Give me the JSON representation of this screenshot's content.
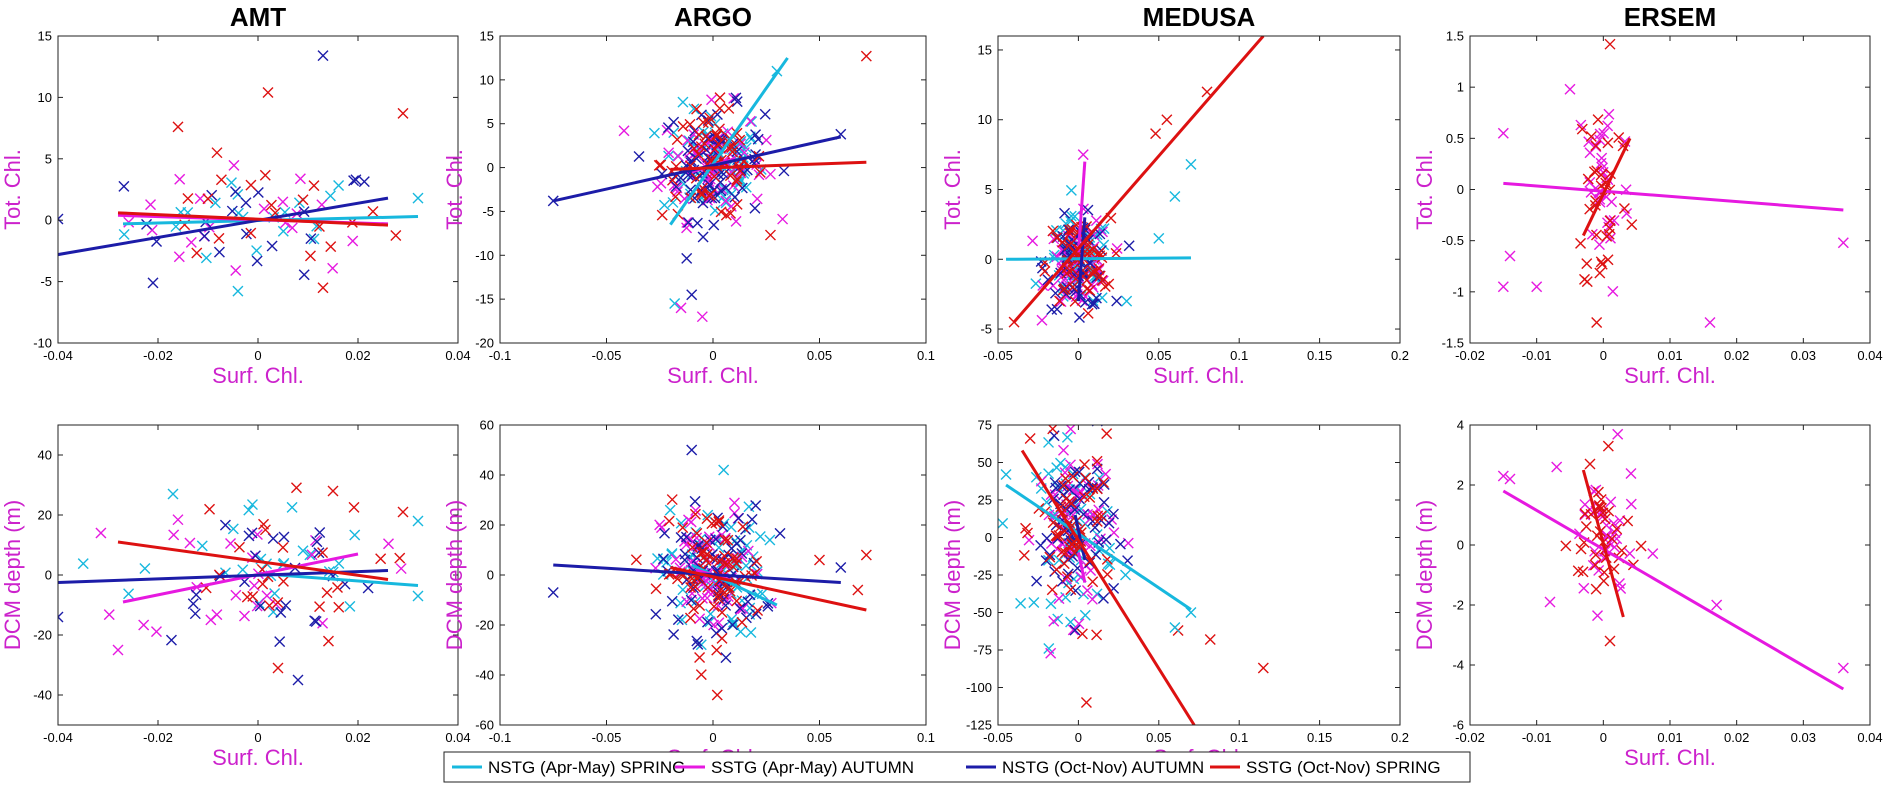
{
  "colors": {
    "NSTG_spring": "#17b8de",
    "SSTG_autumn": "#e619e0",
    "NSTG_autumn": "#1c1ca8",
    "SSTG_spring": "#dd1111",
    "axis_label": "#cc22cc"
  },
  "legend": [
    {
      "label": "NSTG (Apr-May) SPRING",
      "color": "#17b8de"
    },
    {
      "label": "SSTG (Apr-May) AUTUMN",
      "color": "#e619e0"
    },
    {
      "label": "NSTG (Oct-Nov) AUTUMN",
      "color": "#1c1ca8"
    },
    {
      "label": "SSTG (Oct-Nov) SPRING",
      "color": "#dd1111"
    }
  ],
  "chart_data": [
    {
      "type": "scatter",
      "title": "AMT",
      "xlabel": "Surf. Chl.",
      "ylabel": "Tot. Chl.",
      "xlim": [
        -0.04,
        0.04
      ],
      "ylim": [
        -10,
        15
      ],
      "xticks": [
        -0.04,
        -0.02,
        0,
        0.02,
        0.04
      ],
      "xticklabels": [
        "-0.04",
        "-0.02",
        "0",
        "0.02",
        "0.04"
      ],
      "yticks": [
        -10,
        -5,
        0,
        5,
        10,
        15
      ],
      "yticklabels": [
        "-10",
        "-5",
        "0",
        "5",
        "10",
        "15"
      ],
      "cloud": {
        "xc": 0.0,
        "xs": 0.013,
        "yc": 0.0,
        "ys": 2.2,
        "n": 20
      },
      "outliers": [
        [
          -0.04,
          0.1,
          "NSTG_autumn"
        ],
        [
          -0.021,
          -5.1,
          "NSTG_autumn"
        ],
        [
          0.013,
          13.4,
          "NSTG_autumn"
        ],
        [
          0.002,
          10.4,
          "SSTG_spring"
        ],
        [
          0.029,
          8.7,
          "SSTG_spring"
        ],
        [
          -0.016,
          7.6,
          "SSTG_spring"
        ],
        [
          0.013,
          -5.5,
          "SSTG_spring"
        ],
        [
          0.032,
          1.8,
          "NSTG_spring"
        ]
      ],
      "lines": [
        {
          "series": "NSTG_spring",
          "x": [
            -0.027,
            0.032
          ],
          "y": [
            -0.3,
            0.3
          ]
        },
        {
          "series": "SSTG_autumn",
          "x": [
            -0.028,
            0.026
          ],
          "y": [
            0.4,
            -0.3
          ]
        },
        {
          "series": "NSTG_autumn",
          "x": [
            -0.04,
            0.026
          ],
          "y": [
            -2.8,
            1.8
          ]
        },
        {
          "series": "SSTG_spring",
          "x": [
            -0.028,
            0.026
          ],
          "y": [
            0.6,
            -0.4
          ]
        }
      ]
    },
    {
      "type": "scatter",
      "title": "ARGO",
      "xlabel": "Surf. Chl.",
      "ylabel": "Tot. Chl.",
      "xlim": [
        -0.1,
        0.1
      ],
      "ylim": [
        -20,
        15
      ],
      "xticks": [
        -0.1,
        -0.05,
        0,
        0.05,
        0.1
      ],
      "xticklabels": [
        "-0.1",
        "-0.05",
        "0",
        "0.05",
        "0.1"
      ],
      "yticks": [
        -20,
        -15,
        -10,
        -5,
        0,
        5,
        10,
        15
      ],
      "yticklabels": [
        "-20",
        "-15",
        "-10",
        "-5",
        "0",
        "5",
        "10",
        "15"
      ],
      "cloud": {
        "xc": 0.0,
        "xs": 0.012,
        "yc": 0.5,
        "ys": 3.2,
        "n": 70
      },
      "outliers": [
        [
          0.072,
          12.7,
          "SSTG_spring"
        ],
        [
          -0.075,
          -3.8,
          "NSTG_autumn"
        ],
        [
          -0.018,
          -15.5,
          "NSTG_spring"
        ],
        [
          -0.015,
          -16,
          "SSTG_autumn"
        ],
        [
          -0.01,
          -14.5,
          "NSTG_autumn"
        ],
        [
          -0.005,
          -17,
          "SSTG_autumn"
        ],
        [
          0.06,
          3.8,
          "NSTG_autumn"
        ],
        [
          0.03,
          11,
          "NSTG_spring"
        ]
      ],
      "lines": [
        {
          "series": "NSTG_spring",
          "x": [
            -0.02,
            0.035
          ],
          "y": [
            -6.5,
            12.5
          ]
        },
        {
          "series": "SSTG_autumn",
          "x": [
            -0.01,
            0.01
          ],
          "y": [
            -0.5,
            1.0
          ]
        },
        {
          "series": "NSTG_autumn",
          "x": [
            -0.075,
            0.06
          ],
          "y": [
            -3.8,
            3.5
          ]
        },
        {
          "series": "SSTG_spring",
          "x": [
            -0.02,
            0.072
          ],
          "y": [
            -0.2,
            0.6
          ]
        }
      ]
    },
    {
      "type": "scatter",
      "title": "MEDUSA",
      "xlabel": "Surf. Chl.",
      "ylabel": "Tot. Chl.",
      "xlim": [
        -0.05,
        0.2
      ],
      "ylim": [
        -6,
        16
      ],
      "xticks": [
        -0.05,
        0,
        0.05,
        0.1,
        0.15,
        0.2
      ],
      "xticklabels": [
        "-0.05",
        "0",
        "0.05",
        "0.1",
        "0.15",
        "0.2"
      ],
      "yticks": [
        -5,
        0,
        5,
        10,
        15
      ],
      "yticklabels": [
        "-5",
        "0",
        "5",
        "10",
        "15"
      ],
      "cloud": {
        "xc": 0.0,
        "xs": 0.01,
        "yc": -0.3,
        "ys": 1.6,
        "n": 60
      },
      "outliers": [
        [
          0.08,
          12,
          "SSTG_spring"
        ],
        [
          0.055,
          10,
          "SSTG_spring"
        ],
        [
          0.048,
          9,
          "SSTG_spring"
        ],
        [
          0.07,
          6.8,
          "NSTG_spring"
        ],
        [
          0.06,
          4.5,
          "NSTG_spring"
        ],
        [
          0.05,
          1.5,
          "NSTG_spring"
        ],
        [
          0.003,
          7.5,
          "SSTG_autumn"
        ],
        [
          -0.04,
          -4.5,
          "SSTG_spring"
        ],
        [
          0.03,
          -3,
          "NSTG_spring"
        ]
      ],
      "lines": [
        {
          "series": "NSTG_spring",
          "x": [
            -0.045,
            0.07
          ],
          "y": [
            0.0,
            0.1
          ]
        },
        {
          "series": "SSTG_autumn",
          "x": [
            0.0,
            0.004
          ],
          "y": [
            0.5,
            7.0
          ]
        },
        {
          "series": "NSTG_autumn",
          "x": [
            0.0,
            0.004
          ],
          "y": [
            -3,
            3
          ]
        },
        {
          "series": "SSTG_spring",
          "x": [
            -0.04,
            0.115
          ],
          "y": [
            -4.5,
            16
          ]
        }
      ]
    },
    {
      "type": "scatter",
      "title": "ERSEM",
      "xlabel": "Surf. Chl.",
      "ylabel": "Tot. Chl.",
      "xlim": [
        -0.02,
        0.04
      ],
      "ylim": [
        -1.5,
        1.5
      ],
      "xticks": [
        -0.02,
        -0.01,
        0,
        0.01,
        0.02,
        0.03,
        0.04
      ],
      "xticklabels": [
        "-0.02",
        "-0.01",
        "0",
        "0.01",
        "0.02",
        "0.03",
        "0.04"
      ],
      "yticks": [
        -1.5,
        -1,
        -0.5,
        0,
        0.5,
        1,
        1.5
      ],
      "yticklabels": [
        "-1.5",
        "-1",
        "-0.5",
        "0",
        "0.5",
        "1",
        "1.5"
      ],
      "cloud": {
        "xc": 0.0,
        "xs": 0.002,
        "yc": 0.0,
        "ys": 0.55,
        "n": 35
      },
      "outliers": [
        [
          0.036,
          -0.52,
          "SSTG_autumn"
        ],
        [
          0.016,
          -1.3,
          "SSTG_autumn"
        ],
        [
          -0.015,
          0.55,
          "SSTG_autumn"
        ],
        [
          -0.015,
          -0.95,
          "SSTG_autumn"
        ],
        [
          -0.014,
          -0.65,
          "SSTG_autumn"
        ],
        [
          -0.01,
          -0.95,
          "SSTG_autumn"
        ],
        [
          -0.005,
          0.98,
          "SSTG_autumn"
        ],
        [
          0.001,
          1.42,
          "SSTG_spring"
        ],
        [
          -0.001,
          -1.3,
          "SSTG_spring"
        ]
      ],
      "lines": [
        {
          "series": "SSTG_autumn",
          "x": [
            -0.015,
            0.036
          ],
          "y": [
            0.06,
            -0.2
          ]
        },
        {
          "series": "SSTG_spring",
          "x": [
            -0.003,
            0.004
          ],
          "y": [
            -0.45,
            0.5
          ]
        }
      ]
    },
    {
      "type": "scatter",
      "title": "",
      "xlabel": "Surf. Chl.",
      "ylabel": "DCM depth (m)",
      "xlim": [
        -0.04,
        0.04
      ],
      "ylim": [
        -50,
        50
      ],
      "xticks": [
        -0.04,
        -0.02,
        0,
        0.02,
        0.04
      ],
      "xticklabels": [
        "-0.04",
        "-0.02",
        "0",
        "0.02",
        "0.04"
      ],
      "yticks": [
        -40,
        -20,
        0,
        20,
        40
      ],
      "yticklabels": [
        "-40",
        "-20",
        "0",
        "20",
        "40"
      ],
      "cloud": {
        "xc": 0.0,
        "xs": 0.012,
        "yc": 1.0,
        "ys": 12,
        "n": 25
      },
      "outliers": [
        [
          -0.04,
          -14,
          "NSTG_autumn"
        ],
        [
          -0.028,
          -25,
          "SSTG_autumn"
        ],
        [
          0.032,
          18,
          "NSTG_spring"
        ],
        [
          0.032,
          -7,
          "NSTG_spring"
        ],
        [
          0.029,
          21,
          "SSTG_spring"
        ],
        [
          0.008,
          -35,
          "NSTG_autumn"
        ],
        [
          0.015,
          28,
          "SSTG_spring"
        ],
        [
          0.004,
          -31,
          "SSTG_spring"
        ],
        [
          -0.017,
          27,
          "NSTG_spring"
        ]
      ],
      "lines": [
        {
          "series": "NSTG_spring",
          "x": [
            0.0,
            0.032
          ],
          "y": [
            0.5,
            -3.5
          ]
        },
        {
          "series": "SSTG_autumn",
          "x": [
            -0.027,
            0.02
          ],
          "y": [
            -9,
            7
          ]
        },
        {
          "series": "NSTG_autumn",
          "x": [
            -0.04,
            0.026
          ],
          "y": [
            -2.5,
            1.5
          ]
        },
        {
          "series": "SSTG_spring",
          "x": [
            -0.028,
            0.026
          ],
          "y": [
            11,
            -1.5
          ]
        }
      ]
    },
    {
      "type": "scatter",
      "title": "",
      "xlabel": "Surf. Chl.",
      "ylabel": "DCM depth (m)",
      "xlim": [
        -0.1,
        0.1
      ],
      "ylim": [
        -60,
        60
      ],
      "xticks": [
        -0.1,
        -0.05,
        0,
        0.05,
        0.1
      ],
      "xticklabels": [
        "-0.1",
        "-0.05",
        "0",
        "0.05",
        "0.1"
      ],
      "yticks": [
        -60,
        -40,
        -20,
        0,
        20,
        40,
        60
      ],
      "yticklabels": [
        "-60",
        "-40",
        "-20",
        "0",
        "20",
        "40",
        "60"
      ],
      "cloud": {
        "xc": 0.0,
        "xs": 0.012,
        "yc": 1.0,
        "ys": 13,
        "n": 70
      },
      "outliers": [
        [
          -0.075,
          -7,
          "NSTG_autumn"
        ],
        [
          0.072,
          8,
          "SSTG_spring"
        ],
        [
          0.068,
          -6,
          "SSTG_spring"
        ],
        [
          0.06,
          3,
          "NSTG_autumn"
        ],
        [
          -0.01,
          50,
          "NSTG_autumn"
        ],
        [
          0.005,
          42,
          "NSTG_spring"
        ],
        [
          0.002,
          -48,
          "SSTG_spring"
        ],
        [
          0.05,
          6,
          "SSTG_spring"
        ]
      ],
      "lines": [
        {
          "series": "NSTG_spring",
          "x": [
            -0.01,
            0.03
          ],
          "y": [
            4,
            -12
          ]
        },
        {
          "series": "SSTG_autumn",
          "x": [
            -0.008,
            0.008
          ],
          "y": [
            2,
            -2
          ]
        },
        {
          "series": "NSTG_autumn",
          "x": [
            -0.075,
            0.06
          ],
          "y": [
            4,
            -3
          ]
        },
        {
          "series": "SSTG_spring",
          "x": [
            -0.02,
            0.072
          ],
          "y": [
            3,
            -14
          ]
        }
      ]
    },
    {
      "type": "scatter",
      "title": "",
      "xlabel": "Surf. Chl.",
      "ylabel": "DCM depth (m)",
      "xlim": [
        -0.05,
        0.2
      ],
      "ylim": [
        -125,
        75
      ],
      "xticks": [
        -0.05,
        0,
        0.05,
        0.1,
        0.15,
        0.2
      ],
      "xticklabels": [
        "-0.05",
        "0",
        "0.05",
        "0.1",
        "0.15",
        "0.2"
      ],
      "yticks": [
        -125,
        -100,
        -75,
        -50,
        -25,
        0,
        25,
        50,
        75
      ],
      "yticklabels": [
        "-125",
        "-100",
        "-75",
        "-50",
        "-25",
        "0",
        "25",
        "50",
        "75"
      ],
      "cloud": {
        "xc": -0.002,
        "xs": 0.012,
        "yc": 5,
        "ys": 28,
        "n": 60
      },
      "outliers": [
        [
          0.115,
          -87,
          "SSTG_spring"
        ],
        [
          0.082,
          -68,
          "SSTG_spring"
        ],
        [
          0.062,
          -62,
          "SSTG_spring"
        ],
        [
          0.005,
          -110,
          "SSTG_spring"
        ],
        [
          -0.03,
          66,
          "SSTG_spring"
        ],
        [
          0.07,
          -50,
          "NSTG_spring"
        ],
        [
          0.06,
          -60,
          "NSTG_spring"
        ],
        [
          -0.045,
          42,
          "NSTG_spring"
        ]
      ],
      "lines": [
        {
          "series": "NSTG_spring",
          "x": [
            -0.045,
            0.07
          ],
          "y": [
            35,
            -48
          ]
        },
        {
          "series": "SSTG_autumn",
          "x": [
            0.0,
            0.004
          ],
          "y": [
            -10,
            -30
          ]
        },
        {
          "series": "NSTG_autumn",
          "x": [
            -0.002,
            0.004
          ],
          "y": [
            15,
            -15
          ]
        },
        {
          "series": "SSTG_spring",
          "x": [
            -0.035,
            0.072
          ],
          "y": [
            58,
            -125
          ]
        }
      ]
    },
    {
      "type": "scatter",
      "title": "",
      "xlabel": "Surf. Chl.",
      "ylabel": "DCM depth (m)",
      "xlim": [
        -0.02,
        0.04
      ],
      "ylim": [
        -6,
        4
      ],
      "xticks": [
        -0.02,
        -0.01,
        0,
        0.01,
        0.02,
        0.03,
        0.04
      ],
      "xticklabels": [
        "-0.02",
        "-0.01",
        "0",
        "0.01",
        "0.02",
        "0.03",
        "0.04"
      ],
      "yticks": [
        -6,
        -4,
        -2,
        0,
        2,
        4
      ],
      "yticklabels": [
        "-6",
        "-4",
        "-2",
        "0",
        "2",
        "4"
      ],
      "cloud": {
        "xc": 0.0,
        "xs": 0.0025,
        "yc": 0.2,
        "ys": 1.2,
        "n": 35
      },
      "outliers": [
        [
          0.036,
          -4.1,
          "SSTG_autumn"
        ],
        [
          0.017,
          -2.0,
          "SSTG_autumn"
        ],
        [
          -0.015,
          2.3,
          "SSTG_autumn"
        ],
        [
          -0.014,
          2.2,
          "SSTG_autumn"
        ],
        [
          -0.007,
          2.6,
          "SSTG_autumn"
        ],
        [
          -0.008,
          -1.9,
          "SSTG_autumn"
        ],
        [
          0.001,
          -3.2,
          "SSTG_spring"
        ],
        [
          -0.002,
          2.7,
          "SSTG_spring"
        ]
      ],
      "lines": [
        {
          "series": "SSTG_autumn",
          "x": [
            -0.015,
            0.036
          ],
          "y": [
            1.8,
            -4.8
          ]
        },
        {
          "series": "SSTG_spring",
          "x": [
            -0.003,
            0.003
          ],
          "y": [
            2.5,
            -2.4
          ]
        }
      ]
    }
  ]
}
